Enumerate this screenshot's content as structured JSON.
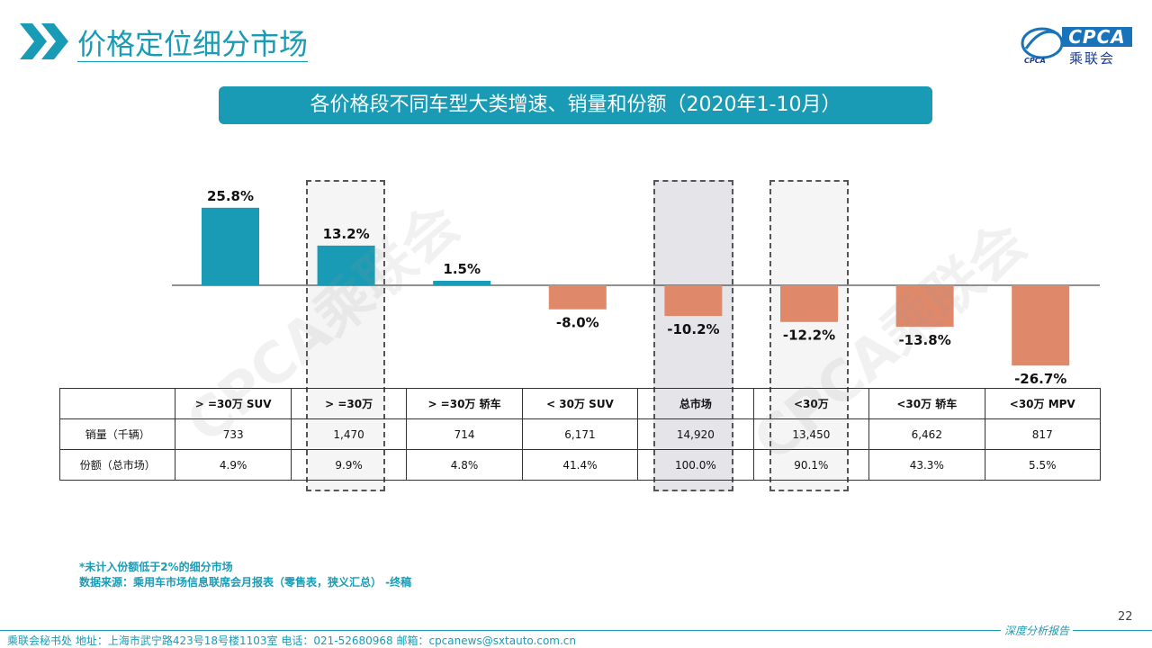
{
  "header": {
    "title": "价格定位细分市场",
    "logo_text": "CPCA",
    "logo_cn": "乘联会"
  },
  "banner": "各价格段不同车型大类增速、销量和份额（2020年1-10月）",
  "watermark": "CPCA乘联会",
  "colors": {
    "accent": "#1a9bb5",
    "positive": "#1a9bb5",
    "negative": "#e0896a"
  },
  "chart_data": {
    "type": "bar",
    "categories": [
      "> =30万 SUV",
      "> =30万",
      "> =30万 轿车",
      "< 30万 SUV",
      "总市场",
      "<30万",
      "<30万 轿车",
      "<30万 MPV"
    ],
    "values": [
      25.8,
      13.2,
      1.5,
      -8.0,
      -10.2,
      -12.2,
      -13.8,
      -26.7
    ],
    "value_labels": [
      "25.8%",
      "13.2%",
      "1.5%",
      "-8.0%",
      "-10.2%",
      "-12.2%",
      "-13.8%",
      "-26.7%"
    ],
    "ylim": [
      -30,
      30
    ]
  },
  "table": {
    "rows": [
      {
        "label": "销量（千辆）",
        "values": [
          "733",
          "1,470",
          "714",
          "6,171",
          "14,920",
          "13,450",
          "6,462",
          "817"
        ]
      },
      {
        "label": "份额（总市场）",
        "values": [
          "4.9%",
          "9.9%",
          "4.8%",
          "41.4%",
          "100.0%",
          "90.1%",
          "43.3%",
          "5.5%"
        ]
      }
    ]
  },
  "notes": {
    "line1": "*未计入份额低于2%的细分市场",
    "line2": "数据来源：乘用车市场信息联席会月报表（零售表，狭义汇总） -终稿"
  },
  "page_number": "22",
  "footer": {
    "left": "乘联会秘书处   地址：上海市武宁路423号18号楼1103室   电话：021-52680968   邮箱：cpcanews@sxtauto.com.cn",
    "right": "深度分析报告"
  }
}
